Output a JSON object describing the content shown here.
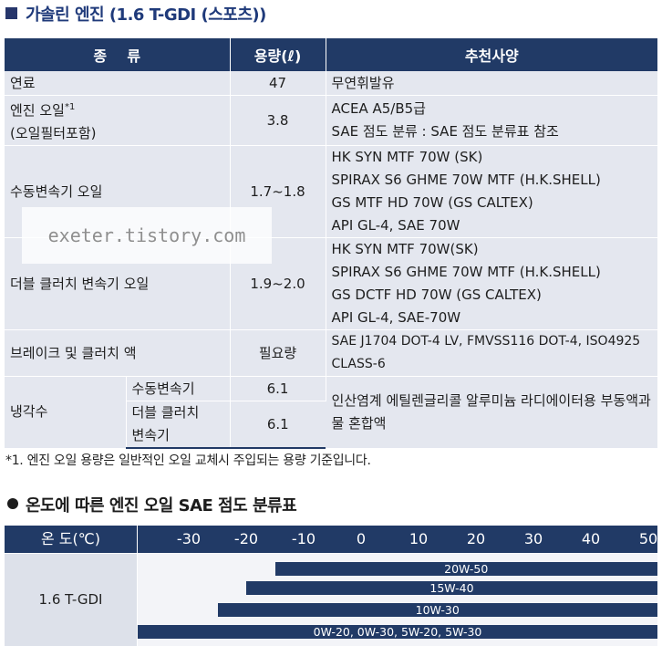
{
  "section1": {
    "title": "가솔린 엔진 (1.6 T-GDI (스포츠))",
    "headers": {
      "type": "종    류",
      "capacity": "용량(ℓ)",
      "spec": "추천사양"
    },
    "rows": {
      "fuel": {
        "label": "연료",
        "capacity": "47",
        "spec": "무연휘발유"
      },
      "engine_oil": {
        "label_line1": "엔진 오일",
        "label_mark": "*1",
        "label_line2": "(오일필터포함)",
        "capacity": "3.8",
        "spec_line1": "ACEA A5/B5급",
        "spec_line2": "SAE 점도 분류 : SAE 점도 분류표 참조"
      },
      "manual_trans": {
        "label": "수동변속기 오일",
        "capacity": "1.7~1.8",
        "spec": [
          "HK SYN MTF 70W (SK)",
          "SPIRAX S6 GHME 70W MTF (H.K.SHELL)",
          "GS MTF HD 70W (GS CALTEX)",
          "API GL-4, SAE 70W"
        ]
      },
      "dct": {
        "label": "더블 클러치 변속기 오일",
        "capacity": "1.9~2.0",
        "spec": [
          "HK SYN MTF 70W(SK)",
          "SPIRAX S6 GHME 70W MTF (H.K.SHELL)",
          "GS DCTF HD 70W (GS CALTEX)",
          "API GL-4, SAE-70W"
        ]
      },
      "brake": {
        "label": "브레이크 및 클러치 액",
        "capacity": "필요량",
        "spec_line1": "SAE J1704 DOT-4 LV, FMVSS116 DOT-4, ISO4925",
        "spec_line2": "CLASS-6"
      },
      "coolant": {
        "label": "냉각수",
        "sub1": "수동변속기",
        "cap1": "6.1",
        "sub2_line1": "더블 클러치",
        "sub2_line2": "변속기",
        "cap2": "6.1",
        "spec_line1": "인산염계 에틸렌글리콜 알루미늄 라디에이터용 부동액과",
        "spec_line2": "물 혼합액"
      }
    },
    "footnote": "*1. 엔진 오일 용량은 일반적인 오일 교체시 주입되는 용량 기준입니다."
  },
  "watermark": "exeter.tistory.com",
  "section2": {
    "title": "온도에 따른 엔진 오일 SAE 점도 분류표",
    "header_label": "온 도(℃)",
    "engine": "1.6 T-GDI",
    "temps": [
      "-30",
      "-20",
      "-10",
      "0",
      "10",
      "20",
      "30",
      "40",
      "50"
    ],
    "grades": [
      {
        "label": "20W-50",
        "min_c": -15,
        "max_c": 50
      },
      {
        "label": "15W-40",
        "min_c": -20,
        "max_c": 50
      },
      {
        "label": "10W-30",
        "min_c": -25,
        "max_c": 50
      },
      {
        "label": "0W-20, 0W-30, 5W-20, 5W-30",
        "min_c": -40,
        "max_c": 50
      }
    ],
    "colors": {
      "header_bg": "#213a66",
      "row_bg": "#e4e7ef",
      "bar": "#213a66"
    }
  }
}
